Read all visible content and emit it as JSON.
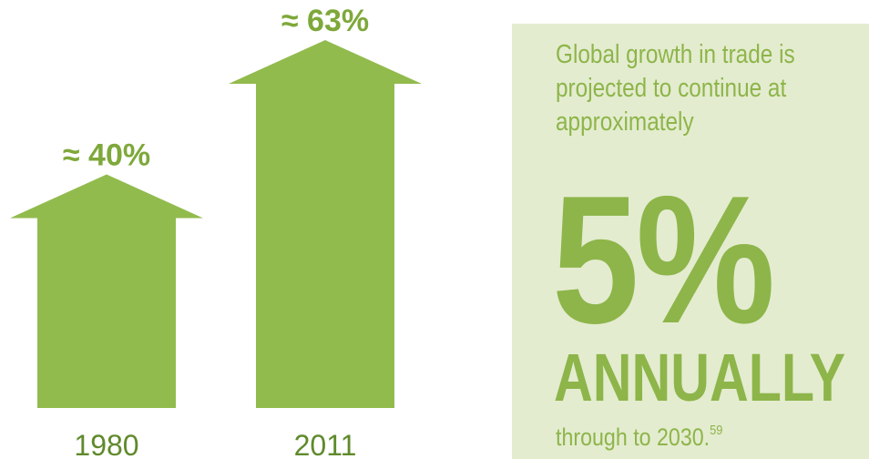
{
  "chart_data": {
    "type": "bar",
    "categories": [
      "1980",
      "2011"
    ],
    "values": [
      40,
      63
    ],
    "value_labels": [
      "≈ 40%",
      "≈ 63%"
    ],
    "unit": "%",
    "bar_shape": "arrow",
    "bar_color": "#92bb4e",
    "title": "",
    "xlabel": "",
    "ylabel": "",
    "ylim": [
      0,
      63
    ]
  },
  "callout": {
    "intro": "Global growth in trade is projected to continue at approximately",
    "big_value": "5%",
    "big_label": "ANNUALLY",
    "tail": "through to 2030.",
    "footnote": "59",
    "background": "#e4eccf",
    "text_color": "#8db54a"
  }
}
